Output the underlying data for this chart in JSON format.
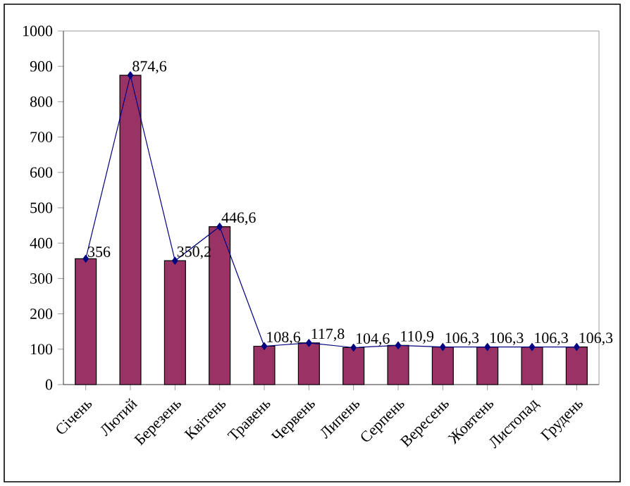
{
  "chart_data": {
    "type": "bar",
    "categories": [
      "Січень",
      "Лютий",
      "Березень",
      "Квітень",
      "Травень",
      "Червень",
      "Липень",
      "Серпень",
      "Вересень",
      "Жовтень",
      "Листопад",
      "Грудень"
    ],
    "series": [
      {
        "color": "#993366",
        "values": [
          356,
          874.6,
          350.2,
          446.6,
          108.6,
          117.8,
          104.6,
          110.9,
          106.3,
          106.3,
          106.3,
          106.3
        ]
      },
      {
        "type": "line",
        "color": "#000080",
        "marker": "diamond",
        "values": [
          356,
          874.6,
          350.2,
          446.6,
          108.6,
          117.8,
          104.6,
          110.9,
          106.3,
          106.3,
          106.3,
          106.3
        ],
        "value_labels": [
          "356",
          "874,6",
          "350,2",
          "446,6",
          "108,6",
          "117,8",
          "104,6",
          "110,9",
          "106,3",
          "106,3",
          "106,3",
          "106,3"
        ]
      }
    ],
    "ylim": [
      0,
      1000
    ],
    "yticks": [
      0,
      100,
      200,
      300,
      400,
      500,
      600,
      700,
      800,
      900,
      1000
    ],
    "grid": false
  }
}
